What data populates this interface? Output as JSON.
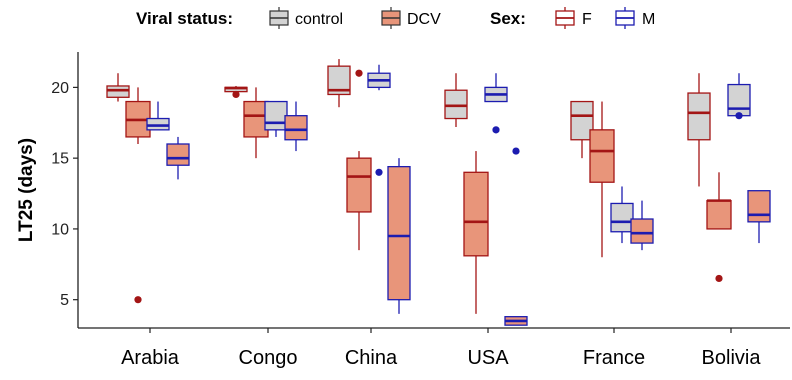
{
  "chart_data": {
    "type": "box",
    "xlabel": "",
    "ylabel": "LT25 (days)",
    "ylim": [
      3,
      22.5
    ],
    "yticks": [
      5,
      10,
      15,
      20
    ],
    "grid": false,
    "categories": [
      "Arabia",
      "Congo",
      "China",
      "USA",
      "France",
      "Bolivia"
    ],
    "legend": {
      "placement": "top",
      "viral_status": {
        "title": "Viral status:",
        "items": [
          {
            "label": "control",
            "fill": "#d3d3d3"
          },
          {
            "label": "DCV",
            "fill": "#e8957a"
          }
        ]
      },
      "sex": {
        "title": "Sex:",
        "items": [
          {
            "label": "F",
            "stroke": "#a31515"
          },
          {
            "label": "M",
            "stroke": "#1c1cb0"
          }
        ]
      }
    },
    "colors": {
      "control_fill": "#d3d3d3",
      "dcv_fill": "#e8957a",
      "female_stroke": "#a31515",
      "male_stroke": "#1c1cb0"
    },
    "series": [
      {
        "virus": "control",
        "sex": "F",
        "boxes": [
          {
            "category": "Arabia",
            "min": 19,
            "q1": 19.3,
            "median": 19.8,
            "q3": 20.1,
            "max": 21,
            "outliers": []
          },
          {
            "category": "Congo",
            "min": 19.7,
            "q1": 19.7,
            "median": 19.95,
            "q3": 20,
            "max": 20.1,
            "outliers": [
              19.5
            ]
          },
          {
            "category": "China",
            "min": 18.6,
            "q1": 19.5,
            "median": 19.8,
            "q3": 21.5,
            "max": 22,
            "outliers": []
          },
          {
            "category": "USA",
            "min": 17.2,
            "q1": 17.8,
            "median": 18.7,
            "q3": 19.8,
            "max": 21,
            "outliers": []
          },
          {
            "category": "France",
            "min": 15,
            "q1": 16.3,
            "median": 18,
            "q3": 19,
            "max": 19,
            "outliers": []
          },
          {
            "category": "Bolivia",
            "min": 13,
            "q1": 16.3,
            "median": 18.2,
            "q3": 19.6,
            "max": 21,
            "outliers": []
          }
        ]
      },
      {
        "virus": "DCV",
        "sex": "F",
        "boxes": [
          {
            "category": "Arabia",
            "min": 16,
            "q1": 16.5,
            "median": 17.7,
            "q3": 19,
            "max": 20,
            "outliers": [
              5
            ]
          },
          {
            "category": "Congo",
            "min": 15,
            "q1": 16.5,
            "median": 18,
            "q3": 19,
            "max": 20,
            "outliers": []
          },
          {
            "category": "China",
            "min": 8.5,
            "q1": 11.2,
            "median": 13.7,
            "q3": 15,
            "max": 15.5,
            "outliers": [
              21
            ]
          },
          {
            "category": "USA",
            "min": 4,
            "q1": 8.1,
            "median": 10.5,
            "q3": 14,
            "max": 15.5,
            "outliers": []
          },
          {
            "category": "France",
            "min": 8,
            "q1": 13.3,
            "median": 15.5,
            "q3": 17,
            "max": 19,
            "outliers": []
          },
          {
            "category": "Bolivia",
            "min": 10,
            "q1": 10,
            "median": 12,
            "q3": 12,
            "max": 14,
            "outliers": [
              6.5
            ]
          }
        ]
      },
      {
        "virus": "control",
        "sex": "M",
        "boxes": [
          {
            "category": "Arabia",
            "min": 17,
            "q1": 17,
            "median": 17.3,
            "q3": 17.8,
            "max": 19,
            "outliers": []
          },
          {
            "category": "Congo",
            "min": 16.5,
            "q1": 17,
            "median": 17.5,
            "q3": 19,
            "max": 19,
            "outliers": []
          },
          {
            "category": "China",
            "min": 19.8,
            "q1": 20,
            "median": 20.5,
            "q3": 21,
            "max": 21.6,
            "outliers": [
              14
            ]
          },
          {
            "category": "USA",
            "min": 19,
            "q1": 19,
            "median": 19.5,
            "q3": 20,
            "max": 21,
            "outliers": [
              17
            ]
          },
          {
            "category": "France",
            "min": 9,
            "q1": 9.8,
            "median": 10.5,
            "q3": 11.8,
            "max": 13,
            "outliers": []
          },
          {
            "category": "Bolivia",
            "min": 18,
            "q1": 18,
            "median": 18.5,
            "q3": 20.2,
            "max": 21,
            "outliers": [
              18
            ]
          }
        ]
      },
      {
        "virus": "DCV",
        "sex": "M",
        "boxes": [
          {
            "category": "Arabia",
            "min": 13.5,
            "q1": 14.5,
            "median": 15,
            "q3": 16,
            "max": 16.5,
            "outliers": []
          },
          {
            "category": "Congo",
            "min": 15.5,
            "q1": 16.3,
            "median": 17,
            "q3": 18,
            "max": 19,
            "outliers": []
          },
          {
            "category": "China",
            "min": 4,
            "q1": 5,
            "median": 9.5,
            "q3": 14.4,
            "max": 15,
            "outliers": []
          },
          {
            "category": "USA",
            "min": 3.2,
            "q1": 3.2,
            "median": 3.5,
            "q3": 3.8,
            "max": 3.8,
            "outliers": [
              15.5
            ]
          },
          {
            "category": "France",
            "min": 8.5,
            "q1": 9,
            "median": 9.7,
            "q3": 10.7,
            "max": 12,
            "outliers": []
          },
          {
            "category": "Bolivia",
            "min": 9,
            "q1": 10.5,
            "median": 11,
            "q3": 12.7,
            "max": 12.7,
            "outliers": []
          }
        ]
      }
    ]
  }
}
